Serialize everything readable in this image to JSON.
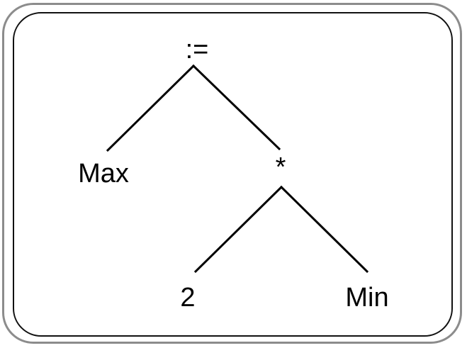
{
  "tree": {
    "root": {
      "label": ":=",
      "left": {
        "label": "Max"
      },
      "right": {
        "label": "*",
        "left": {
          "label": "2"
        },
        "right": {
          "label": "Min"
        }
      }
    }
  },
  "colors": {
    "outer_border": "#8c8c8c",
    "inner_border": "#111111",
    "edges": "#000000",
    "text": "#000000"
  }
}
